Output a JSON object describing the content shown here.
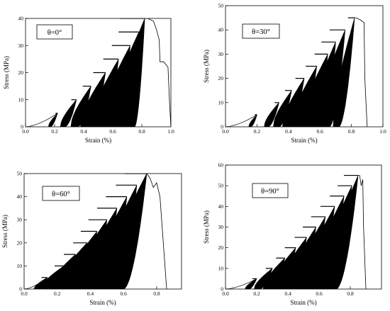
{
  "chart_data": [
    {
      "type": "line",
      "label": "θ=0°",
      "xlabel": "Strain (%)",
      "ylabel": "Stress (MPa)",
      "xlim": [
        0.0,
        1.0
      ],
      "ylim": [
        0,
        40
      ],
      "xticks": [
        "0.0",
        "0.2",
        "0.4",
        "0.6",
        "0.8",
        "1.0"
      ],
      "yticks": [
        "0",
        "10",
        "20",
        "30",
        "40"
      ],
      "cycle_levels": [
        5,
        10,
        15,
        20,
        25,
        30,
        35,
        40
      ],
      "cycle_starts": [
        0.17,
        0.27,
        0.36,
        0.45,
        0.54,
        0.62,
        0.69,
        0.75
      ],
      "cycle_peaks": [
        0.22,
        0.35,
        0.45,
        0.55,
        0.64,
        0.72,
        0.78,
        0.82
      ],
      "hysteresis_width": [
        0.02,
        0.05,
        0.08,
        0.12,
        0.15,
        0.18,
        0.2,
        0.24
      ],
      "final_curve": [
        [
          0.84,
          40
        ],
        [
          0.88,
          39
        ],
        [
          0.9,
          36
        ],
        [
          0.92,
          32
        ],
        [
          0.925,
          24
        ],
        [
          0.95,
          24
        ],
        [
          0.98,
          22
        ],
        [
          0.99,
          10
        ],
        [
          1.0,
          0
        ]
      ]
    },
    {
      "type": "line",
      "label": "θ=30°",
      "xlabel": "Strain (%)",
      "ylabel": "Stress (MPa)",
      "xlim": [
        0.0,
        1.0
      ],
      "ylim": [
        0,
        50
      ],
      "xticks": [
        "0.0",
        "0.2",
        "0.4",
        "0.6",
        "0.8",
        "1.0"
      ],
      "yticks": [
        "0",
        "10",
        "20",
        "30",
        "40",
        "50"
      ],
      "cycle_levels": [
        5,
        10,
        15,
        20,
        25,
        30,
        35,
        40,
        45
      ],
      "cycle_starts": [
        0.16,
        0.27,
        0.34,
        0.41,
        0.48,
        0.55,
        0.61,
        0.66,
        0.72
      ],
      "cycle_peaks": [
        0.2,
        0.34,
        0.42,
        0.5,
        0.58,
        0.65,
        0.7,
        0.76,
        0.82
      ],
      "hysteresis_width": [
        0.02,
        0.04,
        0.06,
        0.08,
        0.1,
        0.12,
        0.13,
        0.14,
        0.06
      ],
      "final_curve": [
        [
          0.83,
          45
        ],
        [
          0.86,
          44
        ],
        [
          0.88,
          43
        ],
        [
          0.885,
          20
        ],
        [
          0.9,
          0
        ]
      ]
    },
    {
      "type": "line",
      "label": "θ=60°",
      "xlabel": "Strain (%)",
      "ylabel": "Stress (MPa)",
      "xlim": [
        0.0,
        0.95
      ],
      "ylim": [
        0,
        50
      ],
      "xticks": [
        "0.0",
        "0.2",
        "0.4",
        "0.6",
        "0.8"
      ],
      "yticks": [
        "0",
        "10",
        "20",
        "30",
        "40",
        "50"
      ],
      "cycle_levels": [
        5,
        10,
        15,
        20,
        25,
        30,
        35,
        40,
        45,
        50
      ],
      "cycle_starts": [
        0.09,
        0.15,
        0.21,
        0.27,
        0.33,
        0.39,
        0.45,
        0.51,
        0.56,
        0.6
      ],
      "cycle_peaks": [
        0.14,
        0.24,
        0.31,
        0.38,
        0.44,
        0.5,
        0.56,
        0.62,
        0.68,
        0.74
      ],
      "hysteresis_width": [
        0.05,
        0.08,
        0.1,
        0.12,
        0.14,
        0.16,
        0.17,
        0.18,
        0.18,
        0.19
      ],
      "final_curve": [
        [
          0.76,
          48
        ],
        [
          0.78,
          44
        ],
        [
          0.8,
          46
        ],
        [
          0.82,
          40
        ],
        [
          0.84,
          20
        ],
        [
          0.86,
          0
        ]
      ]
    },
    {
      "type": "line",
      "label": "θ=90°",
      "xlabel": "Strain (%)",
      "ylabel": "Stress (MPa)",
      "xlim": [
        0.0,
        1.0
      ],
      "ylim": [
        0,
        60
      ],
      "xticks": [
        "0.0",
        "0.2",
        "0.4",
        "0.6",
        "0.8"
      ],
      "yticks": [
        "0",
        "10",
        "20",
        "30",
        "40",
        "50",
        "60"
      ],
      "cycle_levels": [
        5,
        10,
        15,
        20,
        25,
        30,
        35,
        40,
        45,
        50,
        55
      ],
      "cycle_starts": [
        0.15,
        0.22,
        0.29,
        0.35,
        0.41,
        0.47,
        0.52,
        0.57,
        0.62,
        0.67,
        0.71
      ],
      "cycle_peaks": [
        0.2,
        0.3,
        0.38,
        0.45,
        0.52,
        0.58,
        0.64,
        0.7,
        0.76,
        0.81,
        0.85
      ],
      "hysteresis_width": [
        0.04,
        0.06,
        0.08,
        0.1,
        0.11,
        0.12,
        0.13,
        0.13,
        0.13,
        0.13,
        0.13
      ],
      "final_curve": [
        [
          0.86,
          55
        ],
        [
          0.87,
          50
        ],
        [
          0.88,
          53
        ],
        [
          0.885,
          30
        ],
        [
          0.9,
          0
        ]
      ]
    }
  ]
}
